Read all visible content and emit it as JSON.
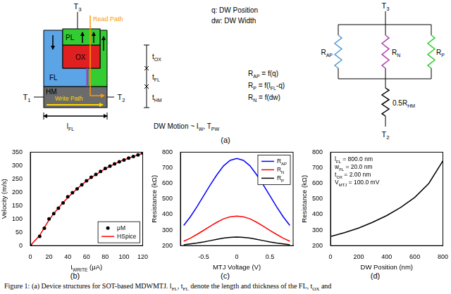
{
  "diagram": {
    "device": {
      "terminal_top": [
        "T",
        [
          "3"
        ]
      ],
      "terminal_left": [
        "T",
        [
          "1"
        ]
      ],
      "terminal_right": [
        "T",
        [
          "2"
        ]
      ],
      "layers": {
        "pl": "PL",
        "ox": "OX",
        "fl": "FL",
        "hm": "HM"
      },
      "colors": {
        "pl": "#33cc33",
        "ox": "#e02020",
        "fl": "#5ba4e6",
        "fl_right": "#33cc33",
        "hm": "#6b6b6b",
        "dw": "#a040c0",
        "read": "#ff9900",
        "write": "#ffd700"
      },
      "read_path": "Read Path",
      "write_path": "Write Path",
      "length": [
        "l",
        [
          "FL"
        ]
      ],
      "thicknesses": [
        [
          "t",
          [
            "OX"
          ]
        ],
        [
          "t",
          [
            "FL"
          ]
        ],
        [
          "t",
          [
            "HM"
          ]
        ]
      ],
      "motion": [
        "DW Motion ~ I",
        [
          "W"
        ],
        ", T",
        [
          "PW"
        ]
      ]
    },
    "notes": [
      "q: DW Position",
      "dw: DW Width"
    ],
    "equations": [
      [
        "R",
        [
          "AP"
        ],
        " = f(q)"
      ],
      [
        "R",
        [
          "P"
        ],
        " = f(l",
        [
          "FL"
        ],
        "-q)"
      ],
      [
        "R",
        [
          "N"
        ],
        " = f(dw)"
      ]
    ],
    "circuit": {
      "terminal_top": [
        "T",
        [
          "3"
        ]
      ],
      "terminal_bottom": [
        "T",
        [
          "2"
        ]
      ],
      "resistors": [
        {
          "label": [
            "R",
            [
              "AP"
            ]
          ],
          "color": "#5b9bd5"
        },
        {
          "label": [
            "R",
            [
              "N"
            ]
          ],
          "color": "#b040b0"
        },
        {
          "label": [
            "R",
            [
              "P"
            ]
          ],
          "color": "#33cc33"
        }
      ],
      "series_resistor": [
        "0.5R",
        [
          "HM"
        ]
      ]
    }
  },
  "panel_labels": [
    "(a)",
    "(b)",
    "(c)",
    "(d)"
  ],
  "chart_data": [
    {
      "type": "line",
      "xlabel": [
        "I",
        [
          "WRITE"
        ],
        " (μA)"
      ],
      "ylabel": "Velocity (m/s)",
      "x": [
        0,
        10,
        15,
        20,
        25,
        30,
        35,
        40,
        45,
        50,
        55,
        60,
        65,
        70,
        75,
        80,
        85,
        90,
        95,
        100,
        105,
        110,
        115,
        120
      ],
      "series": [
        {
          "name": "μM",
          "color": "#000000",
          "marker": "circle",
          "line_style": "none",
          "values": [
            0,
            35,
            65,
            100,
            120,
            140,
            160,
            183,
            198,
            213,
            228,
            243,
            256,
            267,
            278,
            289,
            298,
            306,
            314,
            321,
            328,
            334,
            340,
            347
          ]
        },
        {
          "name": "HSpice",
          "color": "#ff0000",
          "marker": "none",
          "line_style": "solid",
          "values": [
            0,
            38,
            68,
            96,
            120,
            141,
            161,
            180,
            197,
            213,
            228,
            242,
            255,
            266,
            277,
            288,
            297,
            306,
            314,
            321,
            328,
            334,
            340,
            346
          ]
        }
      ],
      "xlim": [
        0,
        120
      ],
      "xticks": [
        0,
        20,
        40,
        60,
        80,
        100,
        120
      ],
      "ylim": [
        0,
        350
      ],
      "yticks": [
        0,
        50,
        100,
        150,
        200,
        250,
        300,
        350
      ],
      "legend": "lower right",
      "grid": false
    },
    {
      "type": "line",
      "xlabel": "MTJ Voltage (V)",
      "ylabel": "Resistance (kΩ)",
      "x": [
        -0.8,
        -0.7,
        -0.6,
        -0.5,
        -0.4,
        -0.3,
        -0.2,
        -0.1,
        0,
        0.1,
        0.2,
        0.3,
        0.4,
        0.5,
        0.6,
        0.7,
        0.8
      ],
      "series": [
        {
          "name": [
            "R",
            [
              "AP"
            ]
          ],
          "color": "#0000ff",
          "marker": "none",
          "line_style": "solid",
          "values": [
            330,
            385,
            450,
            520,
            590,
            655,
            712,
            748,
            760,
            748,
            712,
            655,
            590,
            520,
            450,
            385,
            330
          ]
        },
        {
          "name": [
            "R",
            [
              "N"
            ]
          ],
          "color": "#ff0000",
          "marker": "none",
          "line_style": "solid",
          "values": [
            228,
            248,
            272,
            298,
            325,
            350,
            372,
            385,
            390,
            385,
            372,
            350,
            325,
            298,
            272,
            248,
            228
          ]
        },
        {
          "name": [
            "R",
            [
              "P"
            ]
          ],
          "color": "#000000",
          "marker": "none",
          "line_style": "solid",
          "values": [
            205,
            211,
            217,
            224,
            232,
            240,
            248,
            253,
            255,
            253,
            248,
            240,
            232,
            224,
            217,
            211,
            205
          ]
        }
      ],
      "xlim": [
        -0.85,
        0.85
      ],
      "xticks": [
        -0.5,
        0,
        0.5
      ],
      "ylim": [
        200,
        800
      ],
      "yticks": [
        200,
        300,
        400,
        500,
        600,
        700,
        800
      ],
      "legend": "upper right",
      "grid": false
    },
    {
      "type": "line",
      "xlabel": "DW Position (nm)",
      "ylabel": "Resistance (kΩ)",
      "x": [
        0,
        100,
        200,
        300,
        400,
        500,
        600,
        700,
        800
      ],
      "series": [
        {
          "name": "",
          "color": "#000000",
          "marker": "none",
          "line_style": "solid",
          "values": [
            258,
            283,
            313,
            350,
            393,
            445,
            510,
            600,
            745
          ]
        }
      ],
      "annotations": [
        [
          "l",
          [
            "FL"
          ],
          " = 800.0 nm"
        ],
        [
          "w",
          [
            "FL"
          ],
          " = 20.0 nm"
        ],
        [
          "t",
          [
            "OX"
          ],
          " = 2.00 nm"
        ],
        [
          "V",
          [
            "MTJ"
          ],
          " = 100.0 mV"
        ]
      ],
      "xlim": [
        0,
        800
      ],
      "xticks": [
        0,
        200,
        400,
        600,
        800
      ],
      "ylim": [
        200,
        800
      ],
      "yticks": [
        200,
        300,
        400,
        500,
        600,
        700,
        800
      ],
      "grid": false
    }
  ],
  "caption": [
    "Figure 1: (a) Device structures for SOT-based MDWMTJ. l",
    [
      "FL"
    ],
    ", t",
    [
      "FL"
    ],
    " denote the length and thickness of the FL, t",
    [
      "OX"
    ],
    " and"
  ]
}
